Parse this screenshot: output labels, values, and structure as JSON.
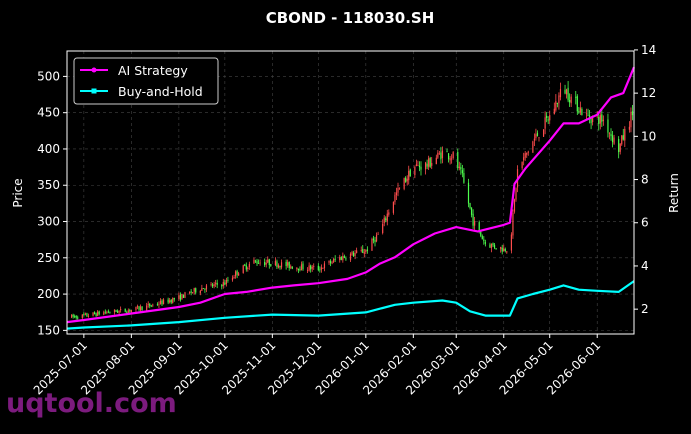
{
  "watermark": "uqtool.com",
  "chart_data": {
    "type": "candlestick+line",
    "title": "CBOND - 118030.SH",
    "ylabel_left": "Price",
    "ylabel_right": "Return",
    "ylim_left": [
      145,
      535
    ],
    "ylim_right": [
      0.85,
      13.95
    ],
    "yticks_left": [
      150,
      200,
      250,
      300,
      350,
      400,
      450,
      500
    ],
    "yticks_right": [
      2,
      4,
      6,
      8,
      10,
      12,
      14
    ],
    "x_range": [
      "2025-06-20",
      "2026-06-25"
    ],
    "xticks": [
      "2025-07-01",
      "2025-08-01",
      "2025-09-01",
      "2025-10-01",
      "2025-11-01",
      "2025-12-01",
      "2026-01-01",
      "2026-02-01",
      "2026-03-01",
      "2026-04-01",
      "2026-05-01",
      "2026-06-01"
    ],
    "grid": true,
    "legend": {
      "position": "top-left",
      "entries": [
        "AI Strategy",
        "Buy-and-Hold"
      ]
    },
    "colors": {
      "up": "#ff4d4d",
      "down": "#4dff4d",
      "ai": "#ff00ff",
      "bh": "#00ffff",
      "background": "#000000"
    },
    "price_path": [
      [
        "2025-06-20",
        168
      ],
      [
        "2025-07-01",
        170
      ],
      [
        "2025-07-15",
        175
      ],
      [
        "2025-08-01",
        178
      ],
      [
        "2025-08-15",
        185
      ],
      [
        "2025-09-01",
        195
      ],
      [
        "2025-09-15",
        208
      ],
      [
        "2025-10-01",
        215
      ],
      [
        "2025-10-10",
        232
      ],
      [
        "2025-10-20",
        245
      ],
      [
        "2025-11-01",
        243
      ],
      [
        "2025-11-15",
        238
      ],
      [
        "2025-12-01",
        235
      ],
      [
        "2025-12-15",
        250
      ],
      [
        "2026-01-01",
        260
      ],
      [
        "2026-01-10",
        285
      ],
      [
        "2026-01-20",
        335
      ],
      [
        "2026-02-01",
        375
      ],
      [
        "2026-02-10",
        378
      ],
      [
        "2026-02-20",
        395
      ],
      [
        "2026-02-27",
        390
      ],
      [
        "2026-03-05",
        360
      ],
      [
        "2026-03-12",
        300
      ],
      [
        "2026-03-20",
        270
      ],
      [
        "2026-04-01",
        262
      ],
      [
        "2026-04-05",
        265
      ],
      [
        "2026-04-10",
        370
      ],
      [
        "2026-04-20",
        410
      ],
      [
        "2026-05-01",
        445
      ],
      [
        "2026-05-10",
        485
      ],
      [
        "2026-05-15",
        470
      ],
      [
        "2026-05-25",
        445
      ],
      [
        "2026-06-05",
        440
      ],
      [
        "2026-06-15",
        400
      ],
      [
        "2026-06-25",
        455
      ]
    ],
    "series": [
      {
        "name": "AI Strategy",
        "x": [
          "2025-06-20",
          "2025-07-01",
          "2025-08-01",
          "2025-09-01",
          "2025-09-15",
          "2025-10-01",
          "2025-10-15",
          "2025-11-01",
          "2025-11-15",
          "2025-12-01",
          "2025-12-20",
          "2026-01-01",
          "2026-01-10",
          "2026-01-20",
          "2026-02-01",
          "2026-02-15",
          "2026-03-01",
          "2026-03-15",
          "2026-04-01",
          "2026-04-05",
          "2026-04-08",
          "2026-04-15",
          "2026-05-01",
          "2026-05-10",
          "2026-05-20",
          "2026-06-01",
          "2026-06-10",
          "2026-06-18",
          "2026-06-25"
        ],
        "values": [
          1.4,
          1.5,
          1.8,
          2.1,
          2.3,
          2.7,
          2.8,
          3.0,
          3.1,
          3.2,
          3.4,
          3.7,
          4.1,
          4.4,
          5.0,
          5.5,
          5.8,
          5.6,
          5.9,
          6.0,
          7.8,
          8.5,
          9.8,
          10.6,
          10.6,
          11.0,
          11.8,
          12.0,
          13.2
        ]
      },
      {
        "name": "Buy-and-Hold",
        "x": [
          "2025-06-20",
          "2025-07-01",
          "2025-08-01",
          "2025-09-01",
          "2025-10-01",
          "2025-11-01",
          "2025-12-01",
          "2026-01-01",
          "2026-01-20",
          "2026-02-01",
          "2026-02-20",
          "2026-03-01",
          "2026-03-10",
          "2026-03-20",
          "2026-04-01",
          "2026-04-05",
          "2026-04-10",
          "2026-04-20",
          "2026-05-01",
          "2026-05-10",
          "2026-05-20",
          "2026-06-01",
          "2026-06-15",
          "2026-06-25"
        ],
        "values": [
          1.1,
          1.15,
          1.25,
          1.4,
          1.6,
          1.75,
          1.7,
          1.85,
          2.2,
          2.3,
          2.4,
          2.3,
          1.9,
          1.7,
          1.7,
          1.7,
          2.5,
          2.7,
          2.9,
          3.1,
          2.9,
          2.85,
          2.8,
          3.3
        ]
      }
    ]
  }
}
